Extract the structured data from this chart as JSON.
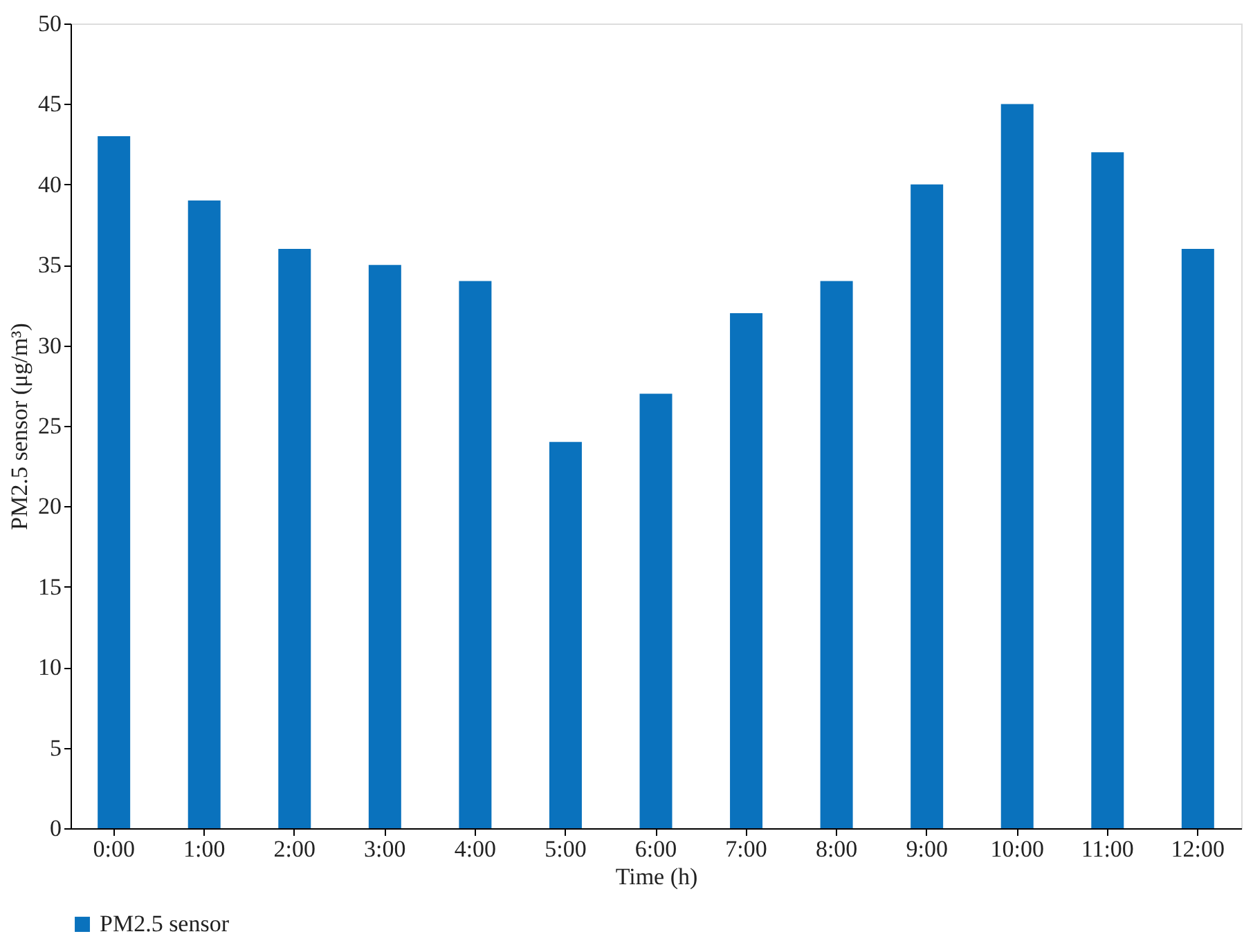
{
  "chart_data": {
    "type": "bar",
    "xlabel": "Time (h)",
    "ylabel": "PM2.5 sensor (μg/m³)",
    "categories": [
      "0:00",
      "1:00",
      "2:00",
      "3:00",
      "4:00",
      "5:00",
      "6:00",
      "7:00",
      "8:00",
      "9:00",
      "10:00",
      "11:00",
      "12:00"
    ],
    "series": [
      {
        "name": "PM2.5 sensor",
        "color": "#0a72bd",
        "values": [
          43,
          39,
          36,
          35,
          34,
          24,
          27,
          32,
          34,
          40,
          45,
          42,
          36
        ]
      }
    ],
    "ylim": [
      0,
      50
    ],
    "yticks": [
      0,
      5,
      10,
      15,
      20,
      25,
      30,
      35,
      40,
      45,
      50
    ],
    "grid": false,
    "legend": "bottom"
  }
}
